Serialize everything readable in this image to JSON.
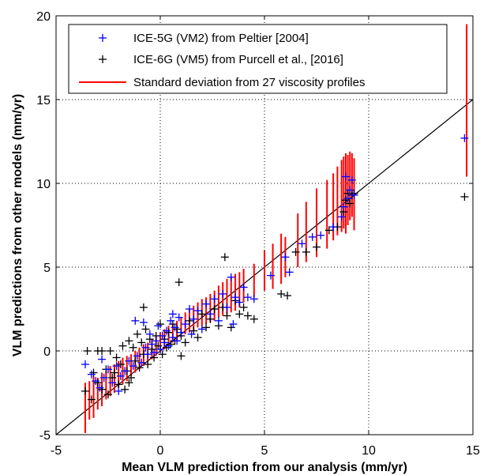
{
  "chart_data": {
    "type": "scatter",
    "xlabel": "Mean VLM prediction from our analysis (mm/yr)",
    "ylabel": "VLM predictions from other models (mm/yr)",
    "xlim": [
      -5,
      15
    ],
    "ylim": [
      -5,
      20
    ],
    "xticks": [
      "-5",
      "0",
      "5",
      "10",
      "15"
    ],
    "yticks": [
      "-5",
      "0",
      "5",
      "10",
      "15",
      "20"
    ],
    "grid": true,
    "legend_position": "top-left",
    "colors": {
      "ice5g": "#0000ff",
      "ice6g": "#000000",
      "std": "#ff0000",
      "line": "#000000"
    },
    "series": [
      {
        "name": "ICE-5G (VM2) from Peltier [2004]",
        "marker": "plus",
        "color": "#0000ff",
        "points": [
          [
            -3.6,
            -0.8
          ],
          [
            -3.3,
            -1.4
          ],
          [
            -3.1,
            -1.8
          ],
          [
            -2.9,
            -2.2
          ],
          [
            -2.7,
            -1.6
          ],
          [
            -2.5,
            -1.1
          ],
          [
            -2.3,
            -1.9
          ],
          [
            -2.1,
            -0.9
          ],
          [
            -1.9,
            -1.5
          ],
          [
            -1.7,
            -1.2
          ],
          [
            -1.5,
            -0.6
          ],
          [
            -1.3,
            -0.9
          ],
          [
            -1.1,
            -0.3
          ],
          [
            -0.9,
            -0.7
          ],
          [
            -0.7,
            0.2
          ],
          [
            -0.6,
            -0.2
          ],
          [
            -0.5,
            1.0
          ],
          [
            -0.4,
            0.4
          ],
          [
            -0.3,
            -0.1
          ],
          [
            -0.2,
            0.6
          ],
          [
            -0.1,
            1.5
          ],
          [
            0.0,
            0.1
          ],
          [
            0.1,
            0.9
          ],
          [
            0.2,
            0.5
          ],
          [
            0.3,
            1.2
          ],
          [
            0.4,
            0.3
          ],
          [
            0.5,
            1.8
          ],
          [
            0.6,
            0.8
          ],
          [
            0.7,
            1.4
          ],
          [
            0.8,
            0.6
          ],
          [
            0.9,
            2.0
          ],
          [
            1.0,
            1.1
          ],
          [
            1.2,
            1.6
          ],
          [
            1.4,
            2.5
          ],
          [
            1.6,
            1.9
          ],
          [
            1.8,
            2.4
          ],
          [
            2.0,
            1.3
          ],
          [
            2.2,
            2.8
          ],
          [
            2.4,
            2.2
          ],
          [
            2.6,
            3.1
          ],
          [
            2.8,
            1.8
          ],
          [
            3.0,
            3.4
          ],
          [
            3.2,
            2.6
          ],
          [
            3.4,
            4.4
          ],
          [
            3.5,
            1.6
          ],
          [
            3.6,
            3.2
          ],
          [
            3.8,
            2.9
          ],
          [
            4.0,
            3.8
          ],
          [
            4.2,
            3.2
          ],
          [
            4.5,
            3.1
          ],
          [
            5.3,
            4.5
          ],
          [
            6.0,
            5.6
          ],
          [
            6.2,
            4.7
          ],
          [
            6.8,
            6.4
          ],
          [
            7.3,
            6.8
          ],
          [
            7.7,
            6.9
          ],
          [
            8.3,
            7.4
          ],
          [
            8.7,
            8.0
          ],
          [
            8.8,
            8.6
          ],
          [
            8.9,
            10.4
          ],
          [
            9.0,
            9.1
          ],
          [
            9.1,
            9.6
          ],
          [
            9.2,
            10.2
          ],
          [
            9.3,
            9.3
          ],
          [
            -1.2,
            1.8
          ],
          [
            -0.8,
            1.7
          ],
          [
            -2.0,
            -2.4
          ],
          [
            -2.8,
            -0.5
          ],
          [
            1.5,
            1.0
          ],
          [
            0.6,
            2.2
          ],
          [
            14.6,
            12.7
          ]
        ]
      },
      {
        "name": "ICE-6G (VM5) from Purcell et al., [2016]",
        "marker": "plus",
        "color": "#000000",
        "points": [
          [
            -3.6,
            -2.4
          ],
          [
            -3.5,
            0.0
          ],
          [
            -3.3,
            -2.9
          ],
          [
            -3.2,
            -1.3
          ],
          [
            -3.0,
            0.0
          ],
          [
            -3.0,
            -1.9
          ],
          [
            -2.8,
            -2.3
          ],
          [
            -2.8,
            0.0
          ],
          [
            -2.6,
            -1.1
          ],
          [
            -2.5,
            -2.6
          ],
          [
            -2.4,
            0.0
          ],
          [
            -2.3,
            -1.6
          ],
          [
            -2.1,
            -0.4
          ],
          [
            -2.0,
            -2.0
          ],
          [
            -1.9,
            -0.8
          ],
          [
            -1.8,
            0.3
          ],
          [
            -1.7,
            -2.3
          ],
          [
            -1.6,
            -1.2
          ],
          [
            -1.5,
            0.6
          ],
          [
            -1.4,
            -1.6
          ],
          [
            -1.3,
            0.2
          ],
          [
            -1.2,
            -0.6
          ],
          [
            -1.1,
            1.0
          ],
          [
            -1.0,
            -1.0
          ],
          [
            -0.9,
            0.5
          ],
          [
            -0.8,
            -0.2
          ],
          [
            -0.7,
            1.3
          ],
          [
            -0.6,
            -0.8
          ],
          [
            -0.5,
            0.7
          ],
          [
            -0.4,
            0.1
          ],
          [
            -0.3,
            -0.4
          ],
          [
            -0.2,
            0.9
          ],
          [
            -0.1,
            0.3
          ],
          [
            0.0,
            1.6
          ],
          [
            0.1,
            -0.2
          ],
          [
            0.2,
            0.7
          ],
          [
            0.3,
            0.2
          ],
          [
            0.4,
            1.1
          ],
          [
            0.5,
            0.4
          ],
          [
            0.6,
            1.6
          ],
          [
            0.7,
            0.6
          ],
          [
            0.8,
            1.3
          ],
          [
            0.9,
            4.1
          ],
          [
            1.0,
            0.9
          ],
          [
            1.2,
            0.5
          ],
          [
            1.4,
            1.8
          ],
          [
            1.6,
            1.2
          ],
          [
            1.8,
            0.8
          ],
          [
            2.0,
            2.2
          ],
          [
            2.2,
            1.4
          ],
          [
            2.4,
            1.9
          ],
          [
            2.6,
            2.5
          ],
          [
            2.8,
            1.5
          ],
          [
            3.0,
            2.6
          ],
          [
            3.2,
            2.1
          ],
          [
            3.4,
            1.4
          ],
          [
            3.6,
            3.0
          ],
          [
            3.8,
            2.2
          ],
          [
            4.0,
            2.6
          ],
          [
            4.2,
            2.1
          ],
          [
            4.5,
            1.9
          ],
          [
            5.8,
            3.4
          ],
          [
            6.1,
            3.3
          ],
          [
            6.5,
            5.9
          ],
          [
            7.0,
            5.9
          ],
          [
            7.5,
            6.2
          ],
          [
            8.1,
            7.2
          ],
          [
            8.5,
            7.4
          ],
          [
            8.8,
            8.3
          ],
          [
            8.9,
            9.0
          ],
          [
            9.0,
            9.4
          ],
          [
            9.1,
            8.8
          ],
          [
            9.2,
            9.3
          ],
          [
            9.3,
            9.4
          ],
          [
            -0.8,
            2.6
          ],
          [
            -2.2,
            -1.3
          ],
          [
            -1.5,
            -1.9
          ],
          [
            3.1,
            5.6
          ],
          [
            1.0,
            -0.3
          ],
          [
            14.6,
            9.2
          ]
        ]
      },
      {
        "name": "Standard deviation from 27 viscosity profiles",
        "type": "errorbar",
        "color": "#ff0000",
        "bars": [
          [
            -3.6,
            -4.9,
            -1.9
          ],
          [
            -3.4,
            -4.1,
            -1.8
          ],
          [
            -3.2,
            -4.0,
            -1.5
          ],
          [
            -3.0,
            -3.5,
            -1.6
          ],
          [
            -2.8,
            -3.3,
            -1.3
          ],
          [
            -2.6,
            -2.9,
            -1.2
          ],
          [
            -2.4,
            -2.7,
            -0.9
          ],
          [
            -2.2,
            -2.5,
            -0.8
          ],
          [
            -2.0,
            -2.2,
            -0.6
          ],
          [
            -1.8,
            -2.0,
            -0.4
          ],
          [
            -1.6,
            -1.8,
            -0.3
          ],
          [
            -1.4,
            -1.5,
            -0.2
          ],
          [
            -1.2,
            -1.3,
            0.0
          ],
          [
            -1.0,
            -1.1,
            0.2
          ],
          [
            -0.8,
            -0.9,
            0.4
          ],
          [
            -0.6,
            -0.7,
            0.5
          ],
          [
            -0.4,
            -0.5,
            0.7
          ],
          [
            -0.2,
            -0.3,
            0.9
          ],
          [
            0.0,
            -0.1,
            1.1
          ],
          [
            0.2,
            0.1,
            1.3
          ],
          [
            0.4,
            0.3,
            1.5
          ],
          [
            0.6,
            0.5,
            1.6
          ],
          [
            0.8,
            0.6,
            1.8
          ],
          [
            1.0,
            0.8,
            2.0
          ],
          [
            1.2,
            1.0,
            2.3
          ],
          [
            1.4,
            1.1,
            2.5
          ],
          [
            1.6,
            1.2,
            2.7
          ],
          [
            1.8,
            1.4,
            2.9
          ],
          [
            2.0,
            1.5,
            3.1
          ],
          [
            2.2,
            1.6,
            3.2
          ],
          [
            2.4,
            1.7,
            3.4
          ],
          [
            2.6,
            1.8,
            3.6
          ],
          [
            2.8,
            2.0,
            3.9
          ],
          [
            3.0,
            2.1,
            4.1
          ],
          [
            3.2,
            2.2,
            4.3
          ],
          [
            3.4,
            2.3,
            4.4
          ],
          [
            3.6,
            2.4,
            4.6
          ],
          [
            3.8,
            2.6,
            4.7
          ],
          [
            4.0,
            2.9,
            4.9
          ],
          [
            4.5,
            3.2,
            5.2
          ],
          [
            5.0,
            3.6,
            6.0
          ],
          [
            5.4,
            3.7,
            6.4
          ],
          [
            5.8,
            4.0,
            7.0
          ],
          [
            6.0,
            4.4,
            6.8
          ],
          [
            6.6,
            5.0,
            8.2
          ],
          [
            7.0,
            5.3,
            8.9
          ],
          [
            7.5,
            5.6,
            9.7
          ],
          [
            8.0,
            6.1,
            10.2
          ],
          [
            8.3,
            6.6,
            10.6
          ],
          [
            8.5,
            6.9,
            11.0
          ],
          [
            8.7,
            7.1,
            11.4
          ],
          [
            8.8,
            7.3,
            11.6
          ],
          [
            8.9,
            7.0,
            11.8
          ],
          [
            9.0,
            7.5,
            11.7
          ],
          [
            9.1,
            7.8,
            11.9
          ],
          [
            9.2,
            8.0,
            11.8
          ],
          [
            9.3,
            7.2,
            11.5
          ],
          [
            14.7,
            10.4,
            19.5
          ]
        ]
      },
      {
        "name": "",
        "type": "line",
        "color": "#000000",
        "points": [
          [
            -5,
            -5
          ],
          [
            15,
            15
          ]
        ]
      }
    ],
    "legend": [
      "ICE-5G (VM2) from Peltier [2004]",
      "ICE-6G (VM5) from Purcell et al., [2016]",
      "Standard deviation from 27 viscosity profiles"
    ]
  }
}
